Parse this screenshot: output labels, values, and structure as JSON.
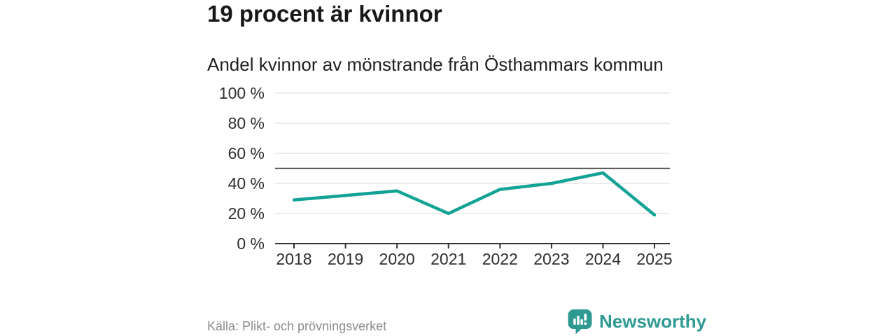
{
  "header": {
    "title": "19 procent är kvinnor",
    "subtitle": "Andel kvinnor av mönstrande från Östhammars kommun"
  },
  "chart_data": {
    "type": "line",
    "categories": [
      "2018",
      "2019",
      "2020",
      "2021",
      "2022",
      "2023",
      "2024",
      "2025"
    ],
    "series": [
      {
        "name": "Andel kvinnor",
        "values": [
          29,
          32,
          35,
          20,
          36,
          40,
          47,
          19
        ]
      }
    ],
    "title": "19 procent är kvinnor",
    "subtitle": "Andel kvinnor av mönstrande från Östhammars kommun",
    "xlabel": "",
    "ylabel": "",
    "ylim": [
      0,
      100
    ],
    "y_ticks": [
      0,
      20,
      40,
      60,
      80,
      100
    ],
    "y_tick_suffix": " %",
    "reference_line": 50,
    "grid": true,
    "legend": "none",
    "colors": {
      "line": "#13a296",
      "grid": "#d9d9d9",
      "reference": "#3f3f3f",
      "axis": "#333333",
      "tick_text": "#2e2e2e"
    }
  },
  "footer": {
    "source": "Källa: Plikt- och prövningsverket",
    "brand": "Newsworthy",
    "brand_color": "#2f9a92",
    "logo_icon": "newsworthy-barchart-pin-icon"
  }
}
